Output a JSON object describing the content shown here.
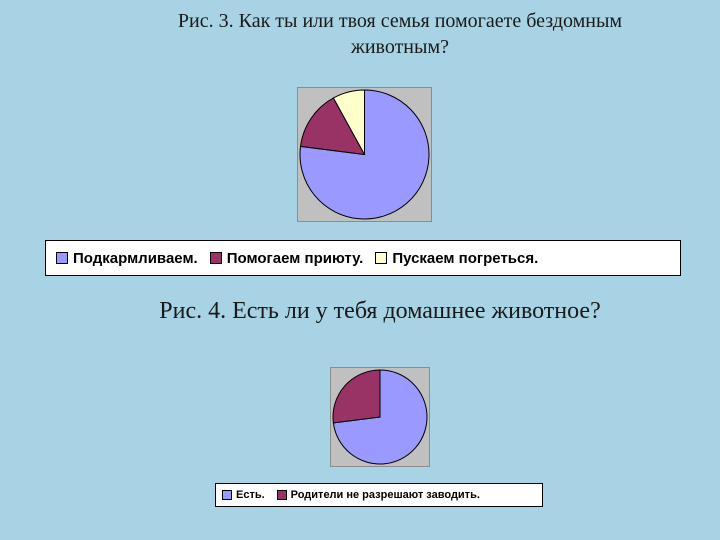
{
  "chart_data": [
    {
      "type": "pie",
      "title": "Рис. 3. Как ты или твоя семья помогаете бездомным животным?",
      "legend_position": "bottom",
      "categories": [
        "Подкармливаем.",
        "Помогаем приюту.",
        "Пускаем погреться."
      ],
      "values": [
        77,
        15,
        8
      ],
      "colors": [
        "#9999ff",
        "#993366",
        "#ffffcc"
      ]
    },
    {
      "type": "pie",
      "title": "Рис. 4. Есть ли у тебя домашнее животное?",
      "legend_position": "bottom",
      "categories": [
        "Есть.",
        "Родители не разрешают заводить."
      ],
      "values": [
        73,
        27
      ],
      "colors": [
        "#9999ff",
        "#993366"
      ]
    }
  ]
}
